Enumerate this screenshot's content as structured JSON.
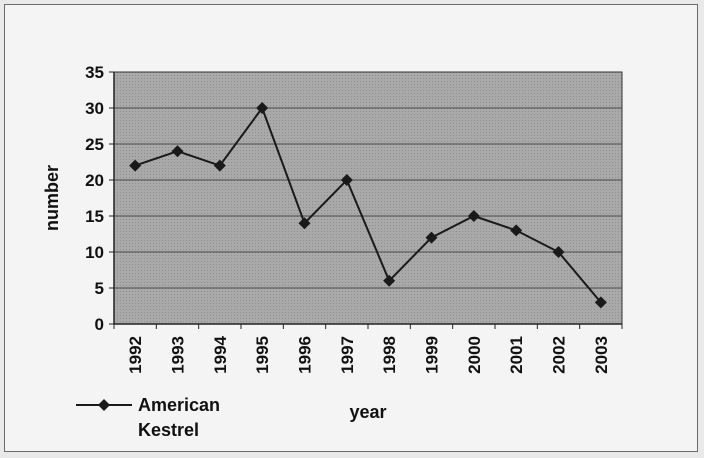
{
  "chart_data": {
    "type": "line",
    "x": [
      "1992",
      "1993",
      "1994",
      "1995",
      "1996",
      "1997",
      "1998",
      "1999",
      "2000",
      "2001",
      "2002",
      "2003"
    ],
    "series": [
      {
        "name": "American Kestrel",
        "values": [
          22,
          24,
          22,
          30,
          14,
          20,
          6,
          12,
          15,
          13,
          10,
          3
        ]
      }
    ],
    "xlabel": "year",
    "ylabel": "number",
    "ylim": [
      0,
      35
    ],
    "yticks": [
      0,
      5,
      10,
      15,
      20,
      25,
      30,
      35
    ],
    "grid": true,
    "legend_position": "bottom-left",
    "legend_lines": [
      "American",
      "Kestrel"
    ],
    "colors": {
      "plot_bg": "#a7a7a7",
      "line": "#1a1a1a",
      "grid": "#4a4a4a",
      "frame_bg": "#f4f4f4"
    }
  }
}
